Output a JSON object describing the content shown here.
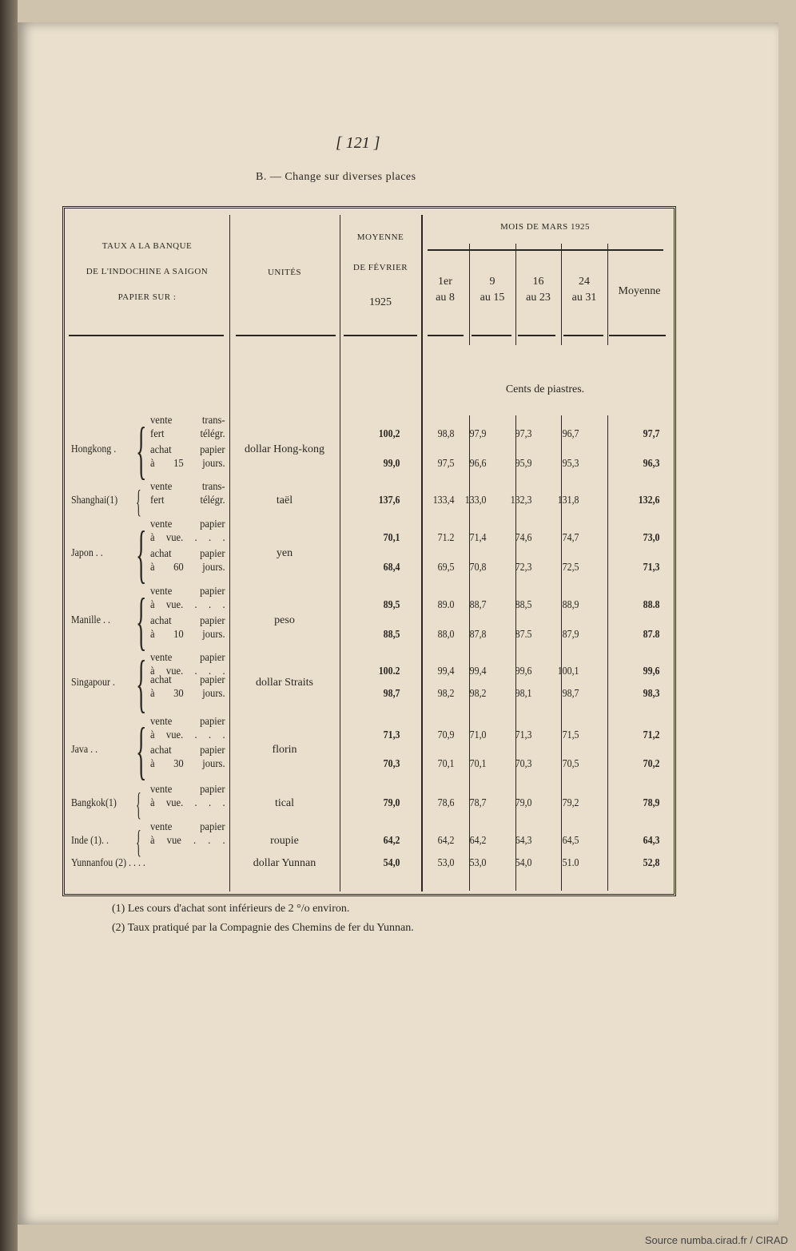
{
  "page_number": "[ 121 ]",
  "section_title": "B. — Change sur diverses places",
  "header": {
    "col1": [
      "TAUX A LA BANQUE",
      "DE L'INDOCHINE A SAIGON",
      "PAPIER SUR :"
    ],
    "col2": "UNITÉS",
    "col3": [
      "MOYENNE",
      "DE FÉVRIER",
      "1925"
    ],
    "group": "MOIS DE MARS 1925",
    "periods": [
      [
        "1er",
        "au 8"
      ],
      [
        "9",
        "au 15"
      ],
      [
        "16",
        "au 23"
      ],
      [
        "24",
        "au 31"
      ],
      [
        "Moyenne",
        ""
      ]
    ]
  },
  "unit_caption": "Cents de piastres.",
  "groups": [
    {
      "place": "Hongkong .",
      "unit": "dollar Hong-kong",
      "rows": [
        {
          "label": [
            "vente trans-",
            "fert télégr."
          ],
          "feb": "100,2",
          "mar": [
            "98,8",
            "97,9",
            "97,3",
            "96,7"
          ],
          "avg": "97,7"
        },
        {
          "label": [
            "achat papier",
            "à 15 jours."
          ],
          "feb": "99,0",
          "mar": [
            "97,5",
            "96,6",
            "95,9",
            "95,3"
          ],
          "avg": "96,3"
        }
      ]
    },
    {
      "place": "Shanghai(1)",
      "unit": "taël",
      "rows": [
        {
          "label": [
            "vente trans-",
            "fert télégr."
          ],
          "feb": "137,6",
          "mar": [
            "133,4",
            "133,0",
            "132,3",
            "131,8"
          ],
          "avg": "132,6"
        }
      ]
    },
    {
      "place": "Japon . .",
      "unit": "yen",
      "rows": [
        {
          "label": [
            "vente papier",
            "à vue. . . ."
          ],
          "feb": "70,1",
          "mar": [
            "71.2",
            "71,4",
            "74,6",
            "74,7"
          ],
          "avg": "73,0"
        },
        {
          "label": [
            "achat papier",
            "à 60 jours."
          ],
          "feb": "68,4",
          "mar": [
            "69,5",
            "70,8",
            "72,3",
            "72,5"
          ],
          "avg": "71,3"
        }
      ]
    },
    {
      "place": "Manille . .",
      "unit": "peso",
      "rows": [
        {
          "label": [
            "vente papier",
            "à vue. . . ."
          ],
          "feb": "89,5",
          "mar": [
            "89.0",
            "88,7",
            "88,5",
            "88,9"
          ],
          "avg": "88.8"
        },
        {
          "label": [
            "achat papier",
            "à 10 jours."
          ],
          "feb": "88,5",
          "mar": [
            "88,0",
            "87,8",
            "87.5",
            "87,9"
          ],
          "avg": "87.8"
        }
      ]
    },
    {
      "place": "Singapour .",
      "unit": "dollar Straits",
      "rows": [
        {
          "label": [
            "vente papier",
            "à vue. . . ."
          ],
          "feb": "100.2",
          "mar": [
            "99,4",
            "99,4",
            "99,6",
            "100,1"
          ],
          "avg": "99,6"
        },
        {
          "label": [
            "achat papier",
            "à 30 jours."
          ],
          "feb": "98,7",
          "mar": [
            "98,2",
            "98,2",
            "98,1",
            "98,7"
          ],
          "avg": "98,3"
        }
      ]
    },
    {
      "place": "Java . .",
      "unit": "florin",
      "rows": [
        {
          "label": [
            "vente papier",
            "à vue. . . ."
          ],
          "feb": "71,3",
          "mar": [
            "70,9",
            "71,0",
            "71,3",
            "71,5"
          ],
          "avg": "71,2"
        },
        {
          "label": [
            "achat papier",
            "à 30 jours."
          ],
          "feb": "70,3",
          "mar": [
            "70,1",
            "70,1",
            "70,3",
            "70,5"
          ],
          "avg": "70,2"
        }
      ]
    },
    {
      "place": "Bangkok(1)",
      "unit": "tical",
      "rows": [
        {
          "label": [
            "vente papier",
            "à vue. . . ."
          ],
          "feb": "79,0",
          "mar": [
            "78,6",
            "78,7",
            "79,0",
            "79,2"
          ],
          "avg": "78,9"
        }
      ]
    },
    {
      "place": "Inde (1). .",
      "unit": "roupie",
      "rows": [
        {
          "label": [
            "vente papier",
            "à vue . . ."
          ],
          "feb": "64,2",
          "mar": [
            "64,2",
            "64,2",
            "64,3",
            "64,5"
          ],
          "avg": "64,3"
        }
      ]
    },
    {
      "place": "Yunnanfou (2) . . . .",
      "unit": "dollar Yunnan",
      "rows": [
        {
          "label": [],
          "feb": "54,0",
          "mar": [
            "53,0",
            "53,0",
            "54,0",
            "51.0"
          ],
          "avg": "52,8"
        }
      ]
    }
  ],
  "footnotes": [
    "(1) Les cours d'achat sont inférieurs de 2 °/o environ.",
    "(2) Taux pratiqué par la Compagnie des Chemins de fer du Yunnan."
  ],
  "source": "Source numba.cirad.fr / CIRAD"
}
